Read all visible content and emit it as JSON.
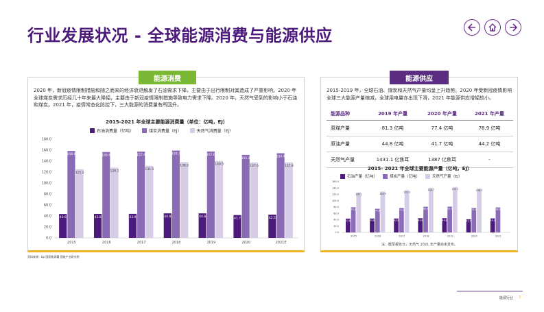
{
  "header": {
    "title": "行业发展状况 - 全球能源消费与能源供应",
    "nav": [
      "back-arrow-icon",
      "home-icon",
      "forward-arrow-icon"
    ]
  },
  "colors": {
    "accent_purple": "#5a2d82",
    "consumption_tab": "#7ab833",
    "supply_tab": "#5a2d82",
    "oil": "#4b1a7a",
    "coal": "#8b6bb5",
    "gas": "#d6cce6",
    "border_yellow": "#f2b01e"
  },
  "consumption": {
    "tab_label": "能源消费",
    "text": "2020 年，新冠疫情限制措施和随之而来的经济衰退触发了石油需求下降，主要由于出行限制对其造成了严重影响。2020 年全球煤炭需求历经几十年来最大降幅，主要由于新冠疫情限制措施导致电力需求下降。2020 年，天然气受到的影响小于石油和煤炭。2021 年，疫情常态化防控下，三大能源的消费量有所回升。"
  },
  "supply": {
    "tab_label": "能源供应",
    "text": "2015-2019 年，全球石油、煤炭和天然气产量均呈上升趋势。2020 年受新冠疫情影响全球三大能源产量缩减，全球用电量亦出现下滑，2021 年能源供应增幅较小。",
    "table": {
      "headers": [
        "能源品种",
        "2019 年产量",
        "2020 年产量",
        "2021 年产量"
      ],
      "rows": [
        [
          "原煤产量",
          "81.3 亿吨",
          "77.4 亿吨",
          "78.9 亿吨"
        ],
        [
          "原油产量",
          "44.8 亿吨",
          "41.7 亿吨",
          "44.2 亿吨"
        ],
        [
          "天然气产量",
          "1431.1 亿焦耳",
          "1387 亿焦耳",
          "-"
        ]
      ]
    },
    "chart_note": "注：截至报告日，天然气 2021 年产量尚未发布。"
  },
  "source": "资料来源：bp 国家能源署 国能产业研究院",
  "footer": {
    "text": "能源行业",
    "page": "3"
  },
  "chart_data": [
    {
      "type": "bar",
      "title": "2015-2021 年全球主要能源消费量（单位：亿吨，EJ）",
      "categories": [
        "2015",
        "2016",
        "2017",
        "2018",
        "2019",
        "2020",
        "2021E"
      ],
      "series": [
        {
          "name": "石油消费量（亿吨）",
          "color": "#4b1a7a",
          "values": [
            43.6,
            43.8,
            43.9,
            44.8,
            44.8,
            41.7,
            42.5
          ]
        },
        {
          "name": "煤炭消费量（EJ）",
          "color": "#8b6bb5",
          "values": [
            158.6,
            156.6,
            157.4,
            159.3,
            157.6,
            151.4,
            154.4
          ]
        },
        {
          "name": "天然气消费量（EJ）",
          "color": "#d6cce6",
          "values": [
            125.2,
            128.1,
            131.5,
            138.2,
            140.5,
            137.6,
            137.8
          ]
        }
      ],
      "ylim": [
        0,
        180
      ],
      "yticks": [
        "0.0",
        "20.0",
        "40.0",
        "60.0",
        "80.0",
        "100.0",
        "120.0",
        "140.0",
        "160.0",
        "180.0"
      ],
      "grid": false,
      "legend": "top"
    },
    {
      "type": "bar",
      "title": "2015- 2021 年全球主要能源产量（亿吨，EJ）",
      "categories": [
        "2015",
        "2016",
        "2017",
        "2018",
        "2019",
        "2020",
        "2021"
      ],
      "series": [
        {
          "name": "石油产量（亿吨）",
          "color": "#4b1a7a",
          "values": [
            43.6,
            43.8,
            43.9,
            44.8,
            44.8,
            41.7,
            44.2
          ]
        },
        {
          "name": "煤炭产量（亿吨）",
          "color": "#8b6bb5",
          "values": [
            79.3,
            74.6,
            77.2,
            80.9,
            81.3,
            77.4,
            78.9
          ]
        },
        {
          "name": "天然气产量（EJ）",
          "color": "#d6cce6",
          "values": [
            126.1,
            128.9,
            133.3,
            140.7,
            143.1,
            138.7,
            null
          ]
        }
      ],
      "ylim": [
        0,
        160
      ],
      "yticks": [
        "0.0",
        "20.0",
        "40.0",
        "60.0",
        "80.0",
        "100.0",
        "120.0",
        "140.0",
        "160.0"
      ],
      "grid": false,
      "legend": "top"
    }
  ]
}
